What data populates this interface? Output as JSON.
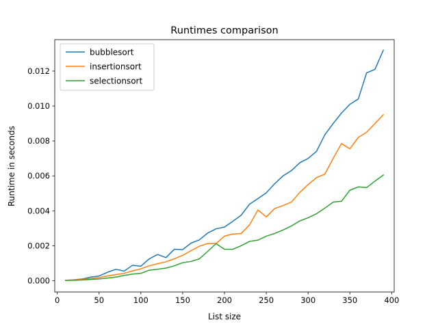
{
  "chart_data": {
    "type": "line",
    "title": "Runtimes comparison",
    "xlabel": "List size",
    "ylabel": "Runtime in seconds",
    "xlim": [
      -3,
      403
    ],
    "ylim": [
      -0.00065,
      0.0138
    ],
    "xticks": [
      0,
      50,
      100,
      150,
      200,
      250,
      300,
      350,
      400
    ],
    "xtick_labels": [
      "0",
      "50",
      "100",
      "150",
      "200",
      "250",
      "300",
      "350",
      "400"
    ],
    "yticks": [
      0.0,
      0.002,
      0.004,
      0.006,
      0.008,
      0.01,
      0.012
    ],
    "ytick_labels": [
      "0.000",
      "0.002",
      "0.004",
      "0.006",
      "0.008",
      "0.010",
      "0.012"
    ],
    "grid": false,
    "legend_position": "top-left",
    "x": [
      10,
      20,
      30,
      40,
      50,
      60,
      70,
      80,
      90,
      100,
      110,
      120,
      130,
      140,
      150,
      160,
      170,
      180,
      190,
      200,
      210,
      220,
      230,
      240,
      250,
      260,
      270,
      280,
      290,
      300,
      310,
      320,
      330,
      340,
      350,
      360,
      370,
      380,
      390
    ],
    "series": [
      {
        "name": "bubblesort",
        "color": "#1f77b4",
        "values": [
          2e-05,
          5e-05,
          0.0001,
          0.0002,
          0.00027,
          0.00048,
          0.00065,
          0.00055,
          0.00088,
          0.00083,
          0.00125,
          0.0015,
          0.00132,
          0.0018,
          0.00178,
          0.00215,
          0.00234,
          0.00273,
          0.00297,
          0.00307,
          0.0034,
          0.00375,
          0.00438,
          0.0047,
          0.00503,
          0.00555,
          0.006,
          0.0063,
          0.00675,
          0.007,
          0.0074,
          0.00835,
          0.009,
          0.0096,
          0.0101,
          0.0104,
          0.0119,
          0.0121,
          0.0132
        ]
      },
      {
        "name": "insertionsort",
        "color": "#ff7f0e",
        "values": [
          2e-05,
          4e-05,
          8e-05,
          0.00012,
          0.00018,
          0.00027,
          0.00035,
          0.00042,
          0.00056,
          0.00068,
          0.00085,
          0.00097,
          0.00108,
          0.00125,
          0.00145,
          0.00172,
          0.00197,
          0.00213,
          0.00213,
          0.00255,
          0.00267,
          0.0027,
          0.0032,
          0.00405,
          0.00365,
          0.00413,
          0.0043,
          0.0045,
          0.00505,
          0.0055,
          0.0059,
          0.0061,
          0.007,
          0.00785,
          0.00755,
          0.0082,
          0.0085,
          0.009,
          0.0095
        ]
      },
      {
        "name": "selectionsort",
        "color": "#2ca02c",
        "values": [
          1e-05,
          2e-05,
          4e-05,
          7e-05,
          0.0001,
          0.00015,
          0.0002,
          0.0003,
          0.00038,
          0.00042,
          0.0006,
          0.00065,
          0.00072,
          0.00085,
          0.00103,
          0.0011,
          0.00125,
          0.00168,
          0.00212,
          0.0018,
          0.0018,
          0.002,
          0.00225,
          0.00232,
          0.00255,
          0.0027,
          0.0029,
          0.00313,
          0.00342,
          0.0036,
          0.00383,
          0.00415,
          0.0045,
          0.00455,
          0.00518,
          0.00537,
          0.00533,
          0.0057,
          0.00605
        ]
      }
    ]
  }
}
